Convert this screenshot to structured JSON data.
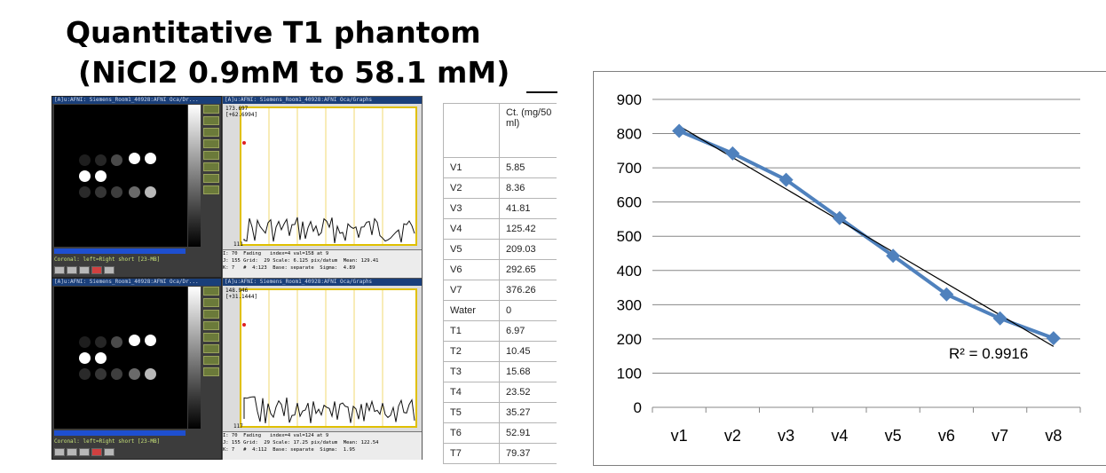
{
  "title": {
    "line1": "Quantitative T1 phantom",
    "line2": "(NiCl2 0.9mM to 58.1 mM)"
  },
  "afni_panels": [
    {
      "window_title": "[A]u:AFNI: Siemens_Room1_40928:AFNI Oca/Dr...",
      "status_text": "Coronal: left=Right short [23-MB]",
      "graph_title": "[A]u:AFNI: Siemens_Room1_40928:AFNI Oca/Graphs",
      "readout_top": "173.697",
      "readout_second": "[+62.6994]",
      "readout_min": "111",
      "info_text": "I: 70  Fading   index=4 val=158 at 9\nJ: 155 Grid:  29 Scale: 6.125 pix/datum  Mean: 129.41\nK: 7   #  4:123  Base: separate  Sigma:  4.89"
    },
    {
      "window_title": "[A]u:AFNI: Siemens_Room1_40928:AFNI Oca/Dr...",
      "status_text": "Coronal: left=Right short [23-MB]",
      "graph_title": "[A]u:AFNI: Siemens_Room1_40928:AFNI Oca/Graphs",
      "readout_top": "148.946",
      "readout_second": "[+31.1444]",
      "readout_min": "117",
      "info_text": "I: 70  Fading   index=4 val=124 at 9\nJ: 155 Grid:  29 Scale: 17.25 pix/datum  Mean: 122.54\nK: 7   #  4:112  Base: separate  Sigma:  1.95"
    }
  ],
  "table": {
    "header": "Ct. (mg/50 ml)",
    "rows": [
      {
        "label": "V1",
        "value": "5.85"
      },
      {
        "label": "V2",
        "value": "8.36"
      },
      {
        "label": "V3",
        "value": "41.81"
      },
      {
        "label": "V4",
        "value": "125.42"
      },
      {
        "label": "V5",
        "value": "209.03"
      },
      {
        "label": "V6",
        "value": "292.65"
      },
      {
        "label": "V7",
        "value": "376.26"
      },
      {
        "label": "Water",
        "value": "0"
      },
      {
        "label": "T1",
        "value": "6.97"
      },
      {
        "label": "T2",
        "value": "10.45"
      },
      {
        "label": "T3",
        "value": "15.68"
      },
      {
        "label": "T4",
        "value": "23.52"
      },
      {
        "label": "T5",
        "value": "35.27"
      },
      {
        "label": "T6",
        "value": "52.91"
      },
      {
        "label": "T7",
        "value": "79.37"
      }
    ]
  },
  "chart_data": {
    "type": "line",
    "categories": [
      "v1",
      "v2",
      "v3",
      "v4",
      "v5",
      "v6",
      "v7",
      "v8"
    ],
    "series": [
      {
        "values": [
          808,
          742,
          665,
          553,
          443,
          330,
          260,
          202
        ],
        "color": "#4f81bd"
      }
    ],
    "trendline": {
      "type": "linear",
      "start": 822,
      "end": 178,
      "color": "#000000"
    },
    "annotation": "R² = 0.9916",
    "ylim": [
      0,
      900
    ],
    "yticks": [
      0,
      100,
      200,
      300,
      400,
      500,
      600,
      700,
      800,
      900
    ],
    "grid": true,
    "legend": "none"
  }
}
